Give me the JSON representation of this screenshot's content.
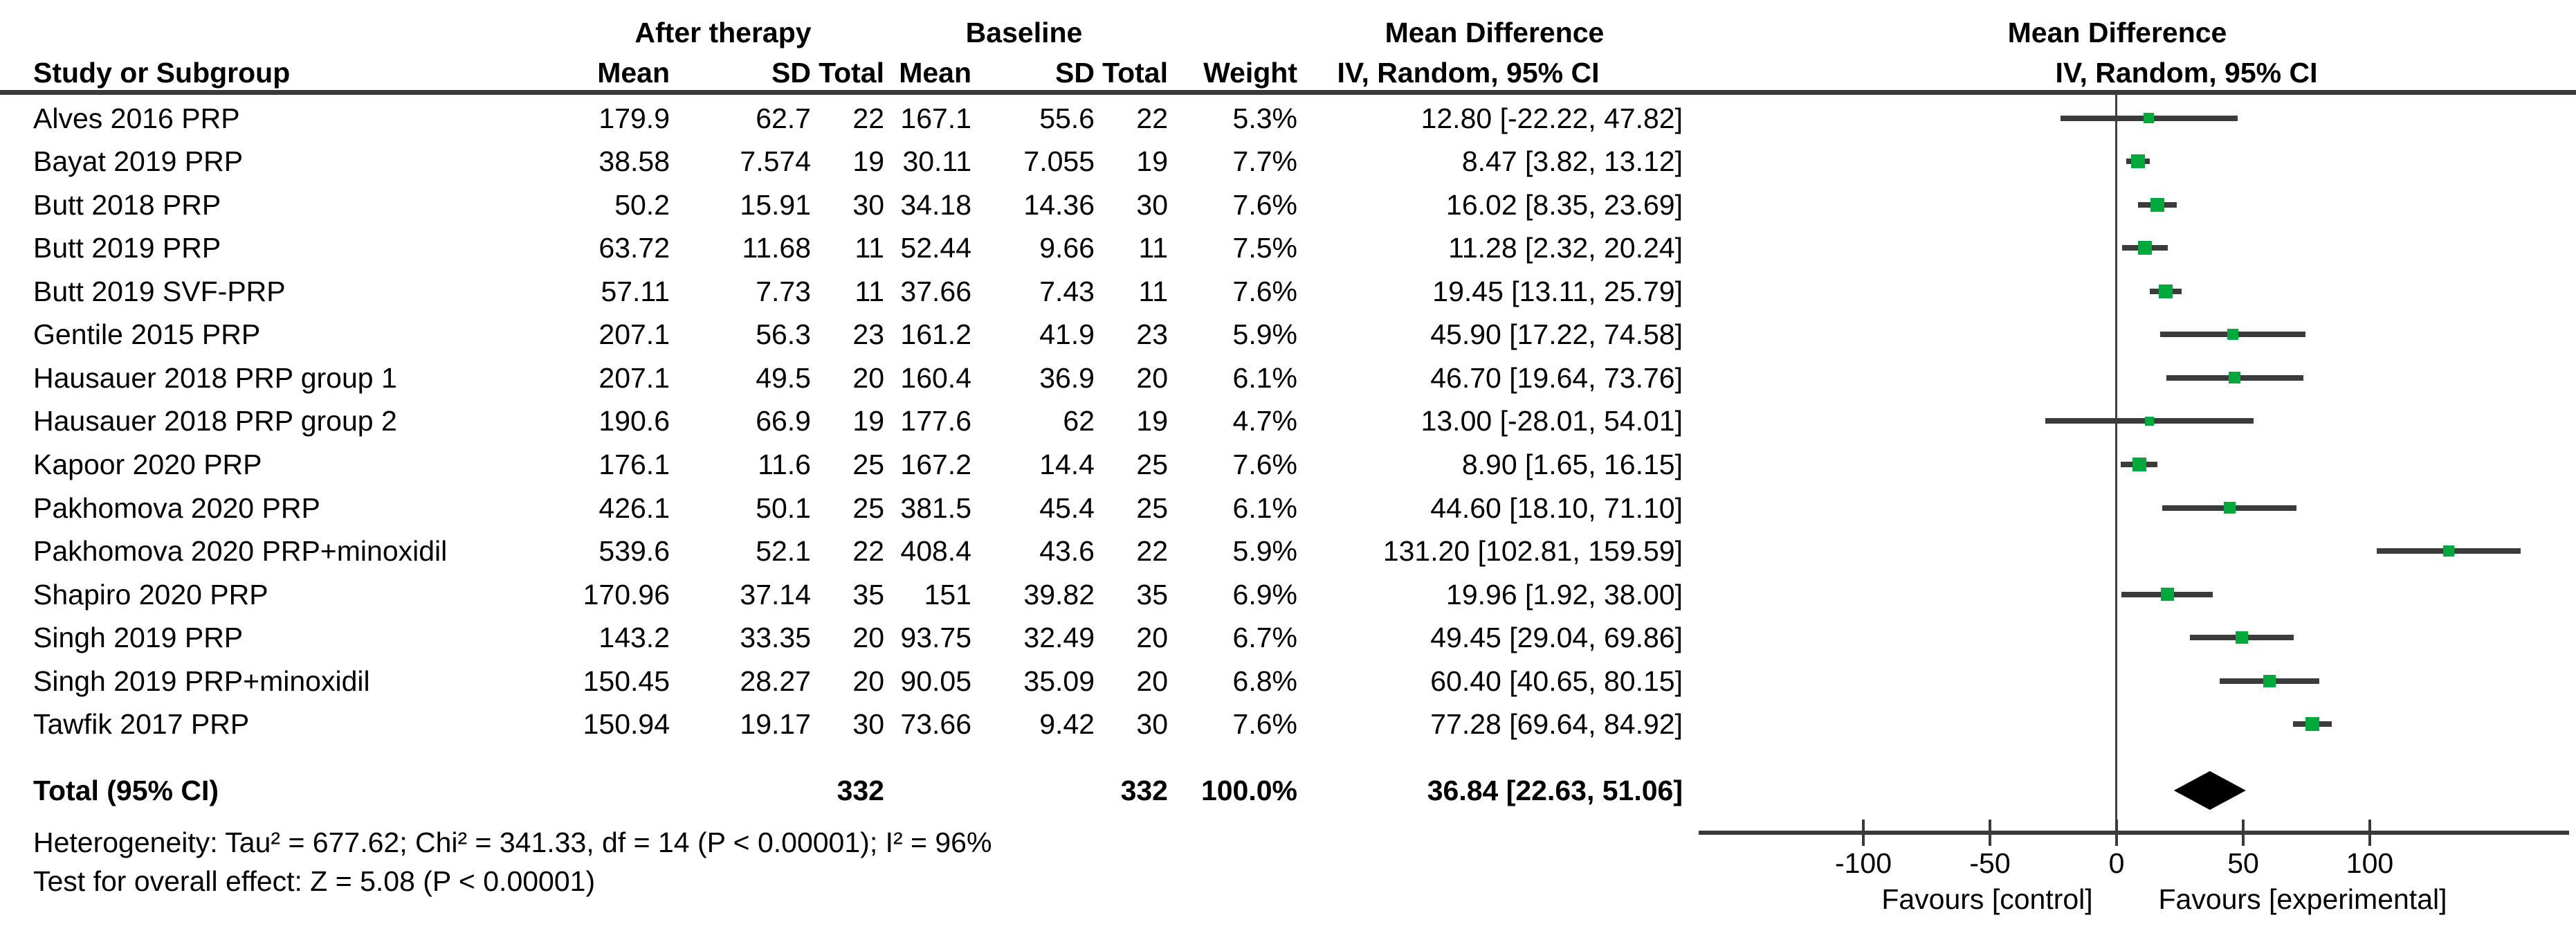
{
  "colors": {
    "marker_green": "#00a93c",
    "ci_line": "#3b3b3b",
    "text": "#000000",
    "diamond": "#000000"
  },
  "header": {
    "group_after": "After therapy",
    "group_baseline": "Baseline",
    "group_md_text": "Mean Difference",
    "group_md_plot": "Mean Difference",
    "study": "Study or Subgroup",
    "mean": "Mean",
    "sd": "SD",
    "total": "Total",
    "weight": "Weight",
    "iv_text": "IV, Random, 95% CI",
    "iv_plot": "IV, Random, 95% CI"
  },
  "footer": {
    "heterogeneity": "Heterogeneity: Tau² = 677.62; Chi² = 341.33, df = 14 (P < 0.00001); I² = 96%",
    "overall_effect": "Test for overall effect: Z = 5.08 (P < 0.00001)"
  },
  "axis": {
    "favours_left": "Favours [control]",
    "favours_right": "Favours [experimental]"
  },
  "chart_data": {
    "type": "scatter",
    "subtype": "forest-plot",
    "title": "Mean Difference, IV, Random, 95% CI",
    "xlabel": "Mean Difference",
    "xlim": [
      -145,
      178
    ],
    "x_ticks": [
      -100,
      -50,
      0,
      50,
      100
    ],
    "grid": false,
    "studies": [
      {
        "name": "Alves 2016 PRP",
        "at_mean": "179.9",
        "at_sd": "62.7",
        "at_total": "22",
        "b_mean": "167.1",
        "b_sd": "55.6",
        "b_total": "22",
        "weight": "5.3%",
        "weight_val": 5.3,
        "ci_label": "12.80 [-22.22, 47.82]",
        "md": 12.8,
        "lo": -22.22,
        "hi": 47.82
      },
      {
        "name": "Bayat 2019 PRP",
        "at_mean": "38.58",
        "at_sd": "7.574",
        "at_total": "19",
        "b_mean": "30.11",
        "b_sd": "7.055",
        "b_total": "19",
        "weight": "7.7%",
        "weight_val": 7.7,
        "ci_label": "8.47 [3.82, 13.12]",
        "md": 8.47,
        "lo": 3.82,
        "hi": 13.12
      },
      {
        "name": "Butt 2018 PRP",
        "at_mean": "50.2",
        "at_sd": "15.91",
        "at_total": "30",
        "b_mean": "34.18",
        "b_sd": "14.36",
        "b_total": "30",
        "weight": "7.6%",
        "weight_val": 7.6,
        "ci_label": "16.02 [8.35, 23.69]",
        "md": 16.02,
        "lo": 8.35,
        "hi": 23.69
      },
      {
        "name": "Butt 2019 PRP",
        "at_mean": "63.72",
        "at_sd": "11.68",
        "at_total": "11",
        "b_mean": "52.44",
        "b_sd": "9.66",
        "b_total": "11",
        "weight": "7.5%",
        "weight_val": 7.5,
        "ci_label": "11.28 [2.32, 20.24]",
        "md": 11.28,
        "lo": 2.32,
        "hi": 20.24
      },
      {
        "name": "Butt 2019 SVF-PRP",
        "at_mean": "57.11",
        "at_sd": "7.73",
        "at_total": "11",
        "b_mean": "37.66",
        "b_sd": "7.43",
        "b_total": "11",
        "weight": "7.6%",
        "weight_val": 7.6,
        "ci_label": "19.45 [13.11, 25.79]",
        "md": 19.45,
        "lo": 13.11,
        "hi": 25.79
      },
      {
        "name": "Gentile 2015 PRP",
        "at_mean": "207.1",
        "at_sd": "56.3",
        "at_total": "23",
        "b_mean": "161.2",
        "b_sd": "41.9",
        "b_total": "23",
        "weight": "5.9%",
        "weight_val": 5.9,
        "ci_label": "45.90 [17.22, 74.58]",
        "md": 45.9,
        "lo": 17.22,
        "hi": 74.58
      },
      {
        "name": "Hausauer 2018 PRP group 1",
        "at_mean": "207.1",
        "at_sd": "49.5",
        "at_total": "20",
        "b_mean": "160.4",
        "b_sd": "36.9",
        "b_total": "20",
        "weight": "6.1%",
        "weight_val": 6.1,
        "ci_label": "46.70 [19.64, 73.76]",
        "md": 46.7,
        "lo": 19.64,
        "hi": 73.76
      },
      {
        "name": "Hausauer 2018 PRP group 2",
        "at_mean": "190.6",
        "at_sd": "66.9",
        "at_total": "19",
        "b_mean": "177.6",
        "b_sd": "62",
        "b_total": "19",
        "weight": "4.7%",
        "weight_val": 4.7,
        "ci_label": "13.00 [-28.01, 54.01]",
        "md": 13.0,
        "lo": -28.01,
        "hi": 54.01
      },
      {
        "name": "Kapoor 2020 PRP",
        "at_mean": "176.1",
        "at_sd": "11.6",
        "at_total": "25",
        "b_mean": "167.2",
        "b_sd": "14.4",
        "b_total": "25",
        "weight": "7.6%",
        "weight_val": 7.6,
        "ci_label": "8.90 [1.65, 16.15]",
        "md": 8.9,
        "lo": 1.65,
        "hi": 16.15
      },
      {
        "name": "Pakhomova 2020 PRP",
        "at_mean": "426.1",
        "at_sd": "50.1",
        "at_total": "25",
        "b_mean": "381.5",
        "b_sd": "45.4",
        "b_total": "25",
        "weight": "6.1%",
        "weight_val": 6.1,
        "ci_label": "44.60 [18.10, 71.10]",
        "md": 44.6,
        "lo": 18.1,
        "hi": 71.1
      },
      {
        "name": "Pakhomova 2020 PRP+minoxidil",
        "at_mean": "539.6",
        "at_sd": "52.1",
        "at_total": "22",
        "b_mean": "408.4",
        "b_sd": "43.6",
        "b_total": "22",
        "weight": "5.9%",
        "weight_val": 5.9,
        "ci_label": "131.20 [102.81, 159.59]",
        "md": 131.2,
        "lo": 102.81,
        "hi": 159.59
      },
      {
        "name": "Shapiro 2020 PRP",
        "at_mean": "170.96",
        "at_sd": "37.14",
        "at_total": "35",
        "b_mean": "151",
        "b_sd": "39.82",
        "b_total": "35",
        "weight": "6.9%",
        "weight_val": 6.9,
        "ci_label": "19.96 [1.92, 38.00]",
        "md": 19.96,
        "lo": 1.92,
        "hi": 38.0
      },
      {
        "name": "Singh 2019 PRP",
        "at_mean": "143.2",
        "at_sd": "33.35",
        "at_total": "20",
        "b_mean": "93.75",
        "b_sd": "32.49",
        "b_total": "20",
        "weight": "6.7%",
        "weight_val": 6.7,
        "ci_label": "49.45 [29.04, 69.86]",
        "md": 49.45,
        "lo": 29.04,
        "hi": 69.86
      },
      {
        "name": "Singh 2019 PRP+minoxidil",
        "at_mean": "150.45",
        "at_sd": "28.27",
        "at_total": "20",
        "b_mean": "90.05",
        "b_sd": "35.09",
        "b_total": "20",
        "weight": "6.8%",
        "weight_val": 6.8,
        "ci_label": "60.40 [40.65, 80.15]",
        "md": 60.4,
        "lo": 40.65,
        "hi": 80.15
      },
      {
        "name": "Tawfik 2017 PRP",
        "at_mean": "150.94",
        "at_sd": "19.17",
        "at_total": "30",
        "b_mean": "73.66",
        "b_sd": "9.42",
        "b_total": "30",
        "weight": "7.6%",
        "weight_val": 7.6,
        "ci_label": "77.28 [69.64, 84.92]",
        "md": 77.28,
        "lo": 69.64,
        "hi": 84.92
      }
    ],
    "total": {
      "name": "Total (95% CI)",
      "at_total": "332",
      "b_total": "332",
      "weight": "100.0%",
      "ci_label": "36.84 [22.63, 51.06]",
      "md": 36.84,
      "lo": 22.63,
      "hi": 51.06
    }
  }
}
